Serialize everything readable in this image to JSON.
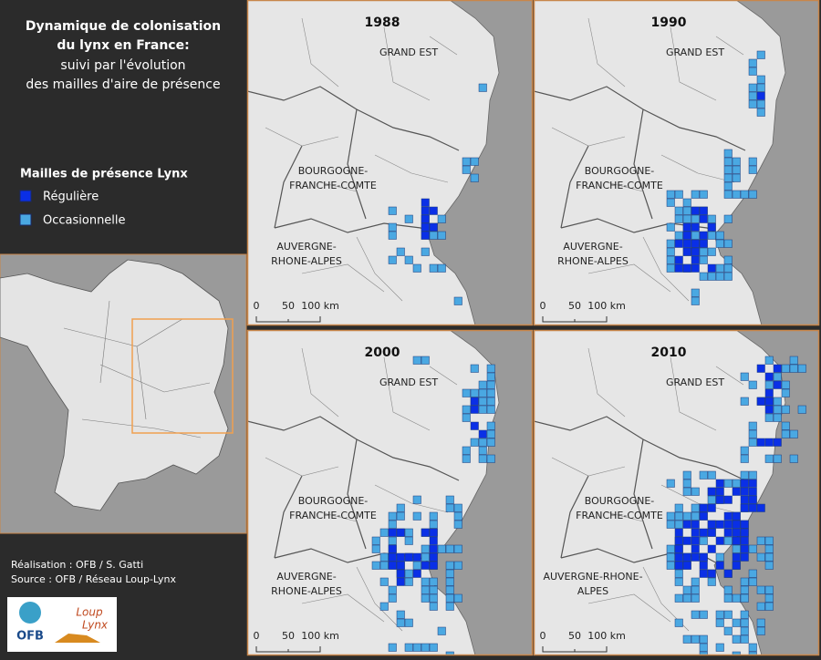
{
  "sidebar": {
    "title": [
      "Dynamique de colonisation",
      "du lynx en France:"
    ],
    "subtitle": [
      "suivi par l'évolution",
      "des mailles d'aire de présence"
    ],
    "legend": {
      "title": "Mailles de présence Lynx",
      "items": [
        {
          "label": "Régulière",
          "color": "#0a2fe6"
        },
        {
          "label": "Occasionnelle",
          "color": "#4aa8e2"
        }
      ]
    },
    "credits": [
      "Réalisation : OFB / S. Gatti",
      "Source : OFB / Réseau Loup-Lynx"
    ],
    "logos": [
      "OFB",
      "Loup",
      "Lynx"
    ]
  },
  "scale_labels": [
    "0",
    "50",
    "100 km"
  ],
  "panels": [
    {
      "year": "1988",
      "regions": [
        {
          "lines": [
            "GRAND EST"
          ]
        },
        {
          "lines": [
            "BOURGOGNE-",
            "FRANCHE-COMTE"
          ]
        },
        {
          "lines": [
            "AUVERGNE-",
            "RHONE-ALPES"
          ]
        }
      ]
    },
    {
      "year": "1990",
      "regions": [
        {
          "lines": [
            "GRAND EST"
          ]
        },
        {
          "lines": [
            "BOURGOGNE-",
            "FRANCHE-COMTE"
          ]
        },
        {
          "lines": [
            "AUVERGNE-",
            "RHONE-ALPES"
          ]
        }
      ]
    },
    {
      "year": "2000",
      "regions": [
        {
          "lines": [
            "GRAND EST"
          ]
        },
        {
          "lines": [
            "BOURGOGNE-",
            "FRANCHE-COMTE"
          ]
        },
        {
          "lines": [
            "AUVERGNE-",
            "RHONE-ALPES"
          ]
        }
      ]
    },
    {
      "year": "2010",
      "regions": [
        {
          "lines": [
            "GRAND EST"
          ]
        },
        {
          "lines": [
            "BOURGOGNE-",
            "FRANCHE-COMTE"
          ]
        },
        {
          "lines": [
            "AUVERGNE-RHONE-",
            "ALPES"
          ]
        }
      ]
    }
  ]
}
